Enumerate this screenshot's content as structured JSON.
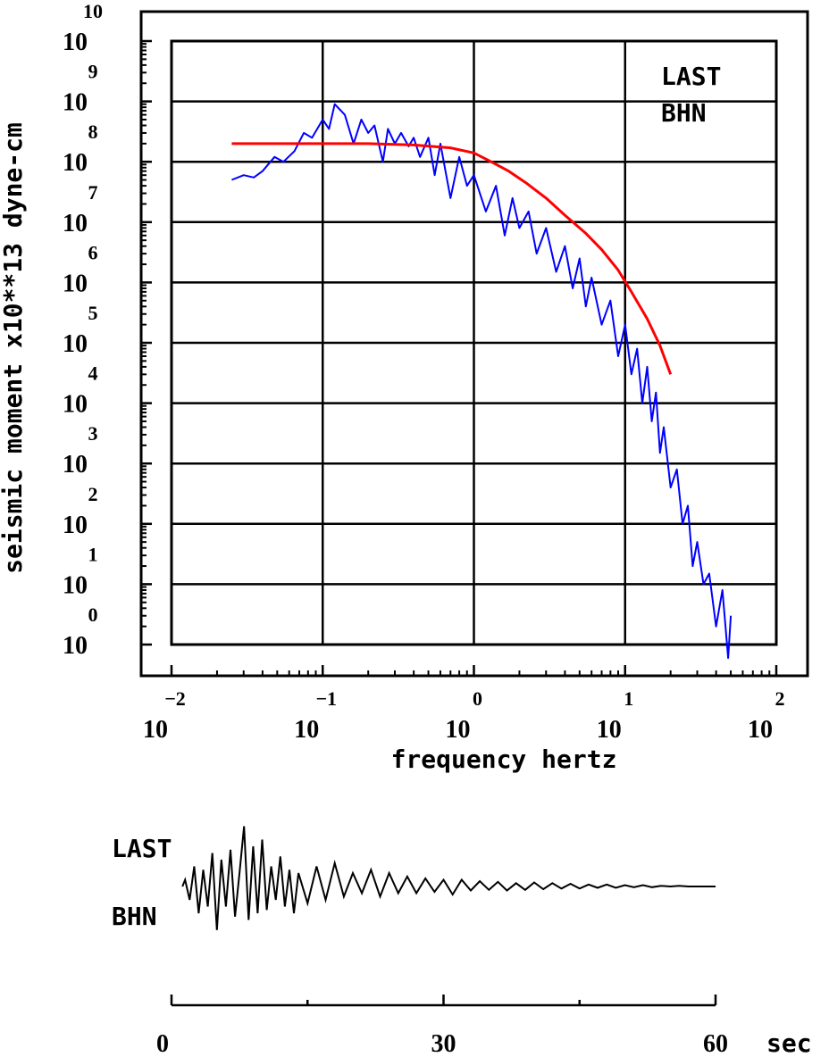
{
  "chart_data": [
    {
      "type": "line",
      "xscale": "log",
      "yscale": "log",
      "xlim": [
        0.01,
        100
      ],
      "ylim": [
        1,
        10000000000
      ],
      "grid": true,
      "ylabel": "seismic moment x10**13 dyne-cm",
      "xlabel": "frequency  hertz",
      "x_ticks": [
        {
          "base": "10",
          "exp": "−2"
        },
        {
          "base": "10",
          "exp": "−1"
        },
        {
          "base": "10",
          "exp": "0"
        },
        {
          "base": "10",
          "exp": "1"
        },
        {
          "base": "10",
          "exp": "2"
        }
      ],
      "y_ticks": [
        {
          "base": "10",
          "exp": "0"
        },
        {
          "base": "10",
          "exp": "1"
        },
        {
          "base": "10",
          "exp": "2"
        },
        {
          "base": "10",
          "exp": "3"
        },
        {
          "base": "10",
          "exp": "4"
        },
        {
          "base": "10",
          "exp": "5"
        },
        {
          "base": "10",
          "exp": "6"
        },
        {
          "base": "10",
          "exp": "7"
        },
        {
          "base": "10",
          "exp": "8"
        },
        {
          "base": "10",
          "exp": "9"
        },
        {
          "base": "10",
          "exp": "10"
        }
      ],
      "annotation": [
        "LAST",
        "BHN"
      ],
      "series": [
        {
          "color": "#0000ff",
          "x": [
            0.025,
            0.03,
            0.035,
            0.04,
            0.048,
            0.055,
            0.065,
            0.075,
            0.085,
            0.1,
            0.11,
            0.12,
            0.14,
            0.16,
            0.18,
            0.2,
            0.22,
            0.25,
            0.27,
            0.3,
            0.33,
            0.37,
            0.4,
            0.44,
            0.5,
            0.55,
            0.6,
            0.7,
            0.8,
            0.9,
            1.0,
            1.2,
            1.4,
            1.6,
            1.8,
            2.0,
            2.3,
            2.6,
            3.0,
            3.5,
            4.0,
            4.5,
            5.0,
            5.5,
            6.0,
            7.0,
            8.0,
            9.0,
            10,
            11,
            12,
            13,
            14,
            15,
            16,
            17,
            18,
            20,
            22,
            24,
            26,
            28,
            30,
            33,
            36,
            40,
            44,
            48,
            50
          ],
          "y": [
            50000000,
            60000000,
            55000000,
            70000000,
            120000000,
            100000000,
            150000000,
            300000000,
            250000000,
            500000000,
            350000000,
            900000000,
            600000000,
            200000000,
            500000000,
            300000000,
            400000000,
            100000000,
            350000000,
            200000000,
            300000000,
            180000000,
            250000000,
            120000000,
            250000000,
            60000000,
            200000000,
            25000000,
            120000000,
            40000000,
            60000000,
            15000000,
            40000000,
            6000000,
            25000000,
            8000000,
            15000000,
            3000000,
            8000000,
            1500000,
            4000000,
            800000,
            2500000,
            400000,
            1200000,
            200000,
            500000,
            60000,
            200000,
            30000,
            80000,
            10000,
            40000,
            5000,
            15000,
            1500,
            4000,
            400,
            800,
            100,
            200,
            20,
            50,
            10,
            15,
            2,
            8,
            0.6,
            3
          ]
        },
        {
          "color": "#ff0000",
          "x": [
            0.025,
            0.05,
            0.1,
            0.2,
            0.4,
            0.7,
            1.0,
            1.3,
            1.7,
            2.2,
            3.0,
            4.0,
            5.5,
            7.0,
            9.0,
            11.0,
            14.0,
            17.0,
            20.0
          ],
          "y": [
            200000000,
            200000000,
            200000000,
            200000000,
            190000000,
            170000000,
            140000000,
            100000000,
            70000000,
            45000000,
            25000000,
            13000000,
            6500000,
            3500000,
            1600000,
            700000,
            250000,
            90000,
            30000
          ]
        }
      ]
    },
    {
      "type": "line",
      "series_label": [
        "LAST",
        "BHN"
      ],
      "xlim": [
        0,
        60
      ],
      "xlabel_ticks": [
        "0",
        "30",
        "60"
      ],
      "xunit": "sec",
      "series": [
        {
          "color": "#000000",
          "x": [
            1.2,
            1.5,
            2.0,
            2.5,
            3.0,
            3.5,
            4.0,
            4.5,
            5.0,
            5.5,
            6.0,
            6.5,
            7.0,
            7.5,
            8.0,
            8.5,
            9.0,
            9.5,
            10.0,
            10.5,
            11.0,
            11.5,
            12.0,
            12.5,
            13.0,
            13.5,
            14.0,
            15.0,
            16.0,
            17.0,
            18.0,
            19.0,
            20.0,
            21.0,
            22.0,
            23.0,
            24.0,
            25.0,
            26.0,
            27.0,
            28.0,
            29.0,
            30.0,
            31.0,
            32.0,
            33.0,
            34.0,
            35.0,
            36.0,
            37.0,
            38.0,
            39.0,
            40.0,
            41.0,
            42.0,
            43.0,
            44.0,
            45.0,
            46.0,
            47.0,
            48.0,
            49.0,
            50.0,
            51.0,
            52.0,
            53.0,
            54.0,
            55.0,
            56.0,
            57.0,
            58.0,
            59.0,
            60.0
          ],
          "y": [
            0,
            0.1,
            -0.2,
            0.3,
            -0.4,
            0.25,
            -0.3,
            0.5,
            -0.65,
            0.4,
            -0.3,
            0.55,
            -0.45,
            0.2,
            0.9,
            -0.5,
            0.6,
            -0.4,
            0.7,
            -0.35,
            0.3,
            -0.2,
            0.45,
            -0.3,
            0.25,
            -0.4,
            0.2,
            -0.25,
            0.3,
            -0.2,
            0.35,
            -0.15,
            0.2,
            -0.1,
            0.25,
            -0.15,
            0.2,
            -0.1,
            0.15,
            -0.1,
            0.12,
            -0.08,
            0.1,
            -0.12,
            0.1,
            -0.06,
            0.08,
            -0.05,
            0.07,
            -0.06,
            0.05,
            -0.05,
            0.06,
            -0.04,
            0.05,
            -0.03,
            0.04,
            -0.03,
            0.03,
            -0.02,
            0.03,
            -0.02,
            0.02,
            -0.01,
            0.02,
            -0.01,
            0.01,
            0,
            0.01,
            0,
            0,
            0,
            0
          ]
        }
      ]
    }
  ]
}
